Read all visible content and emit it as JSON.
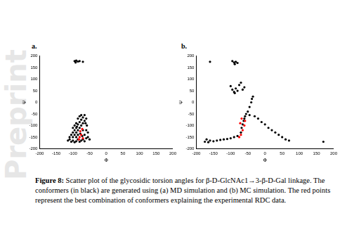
{
  "watermark": "Preprint",
  "caption_label": "Figure 8:",
  "caption": "Scatter plot of the glycosidic torsion angles for β-D-GlcNAc1→3-β-D-Gal linkage. The conformers (in black) are generated using (a) MD simulation and (b) MC simulation. The red points represent the best combination of conformers explaining the experimental RDC data.",
  "chart_data": [
    {
      "type": "scatter",
      "title": "a.",
      "x_label": "Φ",
      "y_label": "Ψ",
      "xlim": [
        -200,
        200
      ],
      "xticks": [
        -200,
        -150,
        -100,
        -50,
        0,
        50,
        100,
        150,
        200
      ],
      "ylim": [
        -200,
        200
      ],
      "yticks": [
        -200,
        -150,
        -100,
        -50,
        0,
        50,
        100,
        150,
        200
      ],
      "grid": false,
      "series": [
        {
          "color": "#000000",
          "x": [
            -95,
            -90,
            -85,
            -80,
            -92,
            -70,
            -110,
            -105,
            -100,
            -95,
            -90,
            -85,
            -80,
            -75,
            -70,
            -65,
            -60,
            -55,
            -100,
            -95,
            -90,
            -85,
            -80,
            -75,
            -70,
            -65,
            -60,
            -95,
            -90,
            -85,
            -80,
            -75,
            -70,
            -65,
            -100,
            -105,
            -60,
            -55,
            -65,
            -70,
            -85,
            -90,
            -80,
            -75,
            -85,
            -90,
            -95,
            -100,
            -58,
            -62,
            -110,
            -115,
            -50,
            -72,
            -78,
            -88
          ],
          "values": [
            178,
            180,
            176,
            178,
            172,
            175,
            -160,
            -170,
            -165,
            -172,
            -168,
            -160,
            -170,
            -165,
            -160,
            -168,
            -155,
            -150,
            -150,
            -140,
            -130,
            -120,
            -110,
            -100,
            -90,
            -80,
            -70,
            -120,
            -110,
            -95,
            -85,
            -75,
            -65,
            -55,
            -130,
            -140,
            -120,
            -130,
            -140,
            -120,
            -140,
            -150,
            -60,
            -55,
            -70,
            -90,
            -100,
            -110,
            -100,
            -90,
            -150,
            -165,
            -160,
            -145,
            -135,
            -105
          ]
        },
        {
          "color": "#ff0000",
          "x": [
            -80,
            -75,
            -78,
            -72,
            -82,
            -70
          ],
          "values": [
            -150,
            -140,
            -125,
            -115,
            -160,
            -155
          ]
        }
      ]
    },
    {
      "type": "scatter",
      "title": "b.",
      "x_label": "Φ",
      "y_label": "Ψ",
      "xlim": [
        -200,
        200
      ],
      "xticks": [
        -200,
        -150,
        -100,
        -50,
        0,
        50,
        100,
        150,
        200
      ],
      "ylim": [
        -200,
        200
      ],
      "yticks": [
        -200,
        -150,
        -100,
        -50,
        0,
        50,
        100,
        150,
        200
      ],
      "grid": false,
      "series": [
        {
          "color": "#000000",
          "x": [
            -95,
            -90,
            -85,
            -80,
            -88,
            -160,
            -100,
            -95,
            -90,
            -85,
            -80,
            -75,
            -70,
            -65,
            -60,
            -88,
            -170,
            -160,
            -150,
            -140,
            -130,
            -120,
            -110,
            -100,
            -90,
            -80,
            -175,
            -165,
            -70,
            -68,
            -65,
            -62,
            -60,
            -58,
            -55,
            -50,
            -45,
            -40,
            -38,
            -35,
            -30,
            -20,
            -10,
            0,
            10,
            20,
            30,
            40,
            50,
            60,
            70,
            -45,
            170
          ],
          "values": [
            178,
            172,
            175,
            170,
            165,
            175,
            70,
            55,
            45,
            60,
            50,
            75,
            85,
            55,
            65,
            40,
            -160,
            -165,
            -168,
            -165,
            -162,
            -160,
            -158,
            -155,
            -150,
            -145,
            -170,
            -172,
            -130,
            -110,
            -95,
            -80,
            -70,
            -60,
            -50,
            -40,
            -20,
            0,
            15,
            25,
            -60,
            -70,
            -85,
            -95,
            -110,
            -120,
            -130,
            -140,
            -150,
            -160,
            -165,
            -55,
            -170
          ]
        },
        {
          "color": "#ff0000",
          "x": [
            -75,
            -70,
            -65,
            -60,
            -72,
            -68,
            -58
          ],
          "values": [
            -150,
            -140,
            -120,
            -100,
            -90,
            -70,
            -80
          ]
        }
      ]
    }
  ]
}
